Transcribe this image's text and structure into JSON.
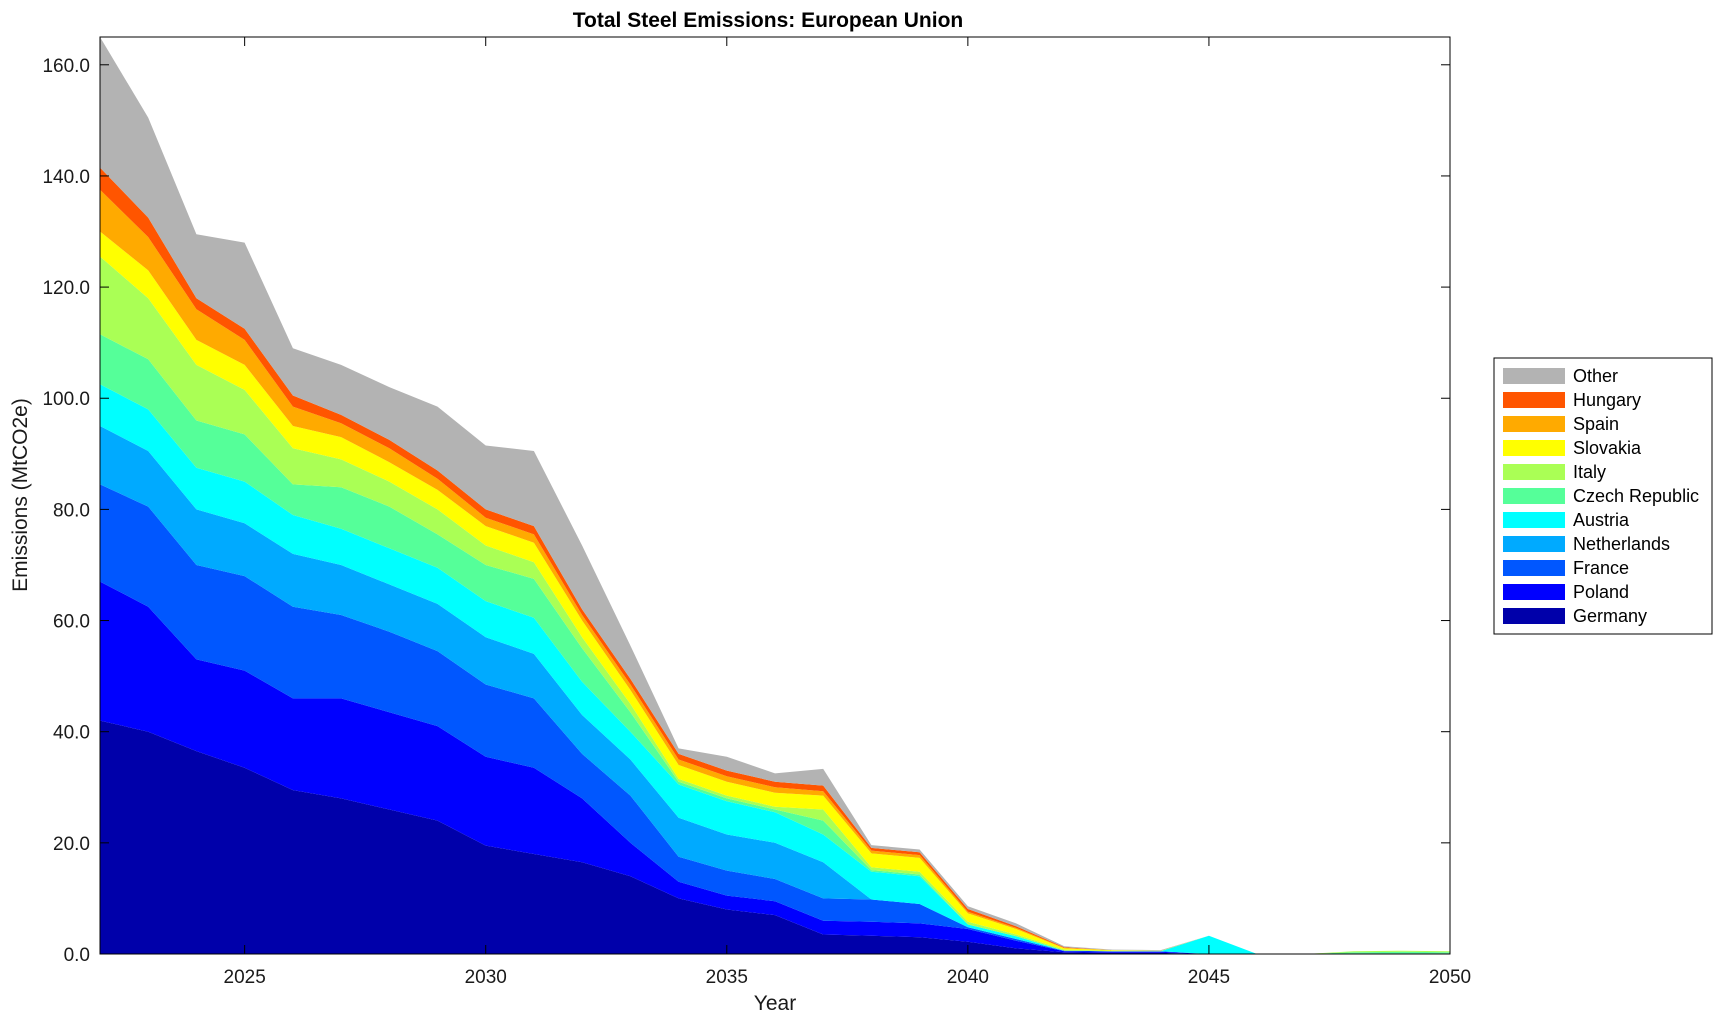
{
  "chart_data": {
    "type": "area",
    "stacked": true,
    "title": "Total Steel Emissions: European Union",
    "xlabel": "Year",
    "ylabel": "Emissions (MtCO2e)",
    "xlim": [
      2022,
      2050
    ],
    "ylim": [
      0,
      165
    ],
    "xticks": [
      2025,
      2030,
      2035,
      2040,
      2045,
      2050
    ],
    "yticks": [
      0,
      20,
      40,
      60,
      80,
      100,
      120,
      140,
      160
    ],
    "ytick_labels": [
      "0.0",
      "20.0",
      "40.0",
      "60.0",
      "80.0",
      "100.0",
      "120.0",
      "140.0",
      "160.0"
    ],
    "legend_position": "right",
    "x": [
      2022,
      2023,
      2024,
      2025,
      2026,
      2027,
      2028,
      2029,
      2030,
      2031,
      2032,
      2033,
      2034,
      2035,
      2036,
      2037,
      2038,
      2039,
      2040,
      2041,
      2042,
      2043,
      2044,
      2045,
      2046,
      2047,
      2048,
      2049,
      2050
    ],
    "series": [
      {
        "name": "Germany",
        "color": "#0000aa",
        "values": [
          42,
          40,
          36.5,
          33.5,
          29.5,
          28,
          26,
          24,
          19.5,
          18,
          16.5,
          14,
          10,
          8,
          7,
          3.5,
          3.3,
          3,
          2.2,
          1,
          0.3,
          0.2,
          0.2,
          0,
          0,
          0,
          0,
          0,
          0
        ]
      },
      {
        "name": "Poland",
        "color": "#0000ff",
        "values": [
          25,
          22.5,
          16.5,
          17.5,
          16.5,
          18,
          17.5,
          17,
          16,
          15.5,
          11.5,
          6,
          3,
          2.5,
          2.5,
          2.5,
          2.5,
          2.5,
          2.3,
          1.4,
          0.2,
          0.2,
          0.2,
          0,
          0,
          0,
          0,
          0,
          0
        ]
      },
      {
        "name": "France",
        "color": "#0057ff",
        "values": [
          17.5,
          18,
          17,
          17,
          16.5,
          15,
          14.5,
          13.5,
          13,
          12.5,
          8,
          8.5,
          4.5,
          4.5,
          4,
          4,
          4,
          3.5,
          0.3,
          0.3,
          0.1,
          0.1,
          0.1,
          0,
          0,
          0,
          0.1,
          0.1,
          0.1
        ]
      },
      {
        "name": "Netherlands",
        "color": "#00aaff",
        "values": [
          10.5,
          10,
          10,
          9.5,
          9.5,
          9,
          8.5,
          8.5,
          8.5,
          8,
          7,
          6.5,
          7,
          6.5,
          6.5,
          6.5,
          0,
          0,
          0,
          0,
          0,
          0,
          0,
          0,
          0,
          0,
          0,
          0,
          0
        ]
      },
      {
        "name": "Austria",
        "color": "#00ffff",
        "values": [
          7.5,
          7.5,
          7.5,
          7.5,
          7,
          6.5,
          6.5,
          6.5,
          6.5,
          6.5,
          6,
          5,
          6,
          6,
          5.5,
          5,
          5,
          5,
          0.5,
          0.5,
          0,
          0,
          0,
          3.3,
          0,
          0,
          0,
          0,
          0
        ]
      },
      {
        "name": "Czech Republic",
        "color": "#55ff99",
        "values": [
          9,
          9,
          8.5,
          8.5,
          5.5,
          7.5,
          7.5,
          6,
          6.5,
          7,
          6,
          3.5,
          0.5,
          0.5,
          0.5,
          2.5,
          0.3,
          0.3,
          0,
          0,
          0,
          0,
          0,
          0,
          0,
          0,
          0.2,
          0.3,
          0.2
        ]
      },
      {
        "name": "Italy",
        "color": "#aaff55",
        "values": [
          14,
          11,
          10,
          8,
          6.5,
          5,
          4.5,
          4.5,
          3.5,
          3,
          2,
          1.5,
          0.5,
          0.5,
          0.5,
          2,
          0.5,
          0.5,
          0.5,
          0.3,
          0.2,
          0.1,
          0.1,
          0,
          0,
          0,
          0.2,
          0.2,
          0.2
        ]
      },
      {
        "name": "Slovakia",
        "color": "#ffff00",
        "values": [
          4.5,
          5,
          4.5,
          4.5,
          4,
          4,
          3.5,
          3.5,
          3.5,
          3.5,
          3,
          2.5,
          2.5,
          2.5,
          2.5,
          2.5,
          2.5,
          2.5,
          1.5,
          1,
          0.2,
          0.1,
          0,
          0,
          0,
          0,
          0,
          0,
          0
        ]
      },
      {
        "name": "Spain",
        "color": "#ffaa00",
        "values": [
          7.5,
          6,
          5.5,
          4.5,
          3.5,
          2.5,
          2.5,
          2,
          1.5,
          1.5,
          1,
          1,
          1,
          1,
          1,
          0.8,
          0.5,
          0.5,
          0.3,
          0.2,
          0.1,
          0,
          0,
          0,
          0,
          0,
          0,
          0,
          0
        ]
      },
      {
        "name": "Hungary",
        "color": "#ff5500",
        "values": [
          4,
          3.5,
          2,
          2,
          2,
          1.5,
          1.5,
          1.5,
          1.5,
          1.5,
          1,
          1,
          1,
          1,
          1,
          1,
          0.5,
          0.5,
          0.5,
          0.3,
          0.1,
          0,
          0,
          0,
          0,
          0,
          0,
          0,
          0
        ]
      },
      {
        "name": "Other",
        "color": "#b3b3b3",
        "values": [
          23.5,
          18,
          11.5,
          15.5,
          8.5,
          9,
          9.5,
          11.5,
          11.5,
          13.5,
          11.5,
          6,
          1,
          2.5,
          1.5,
          3,
          0.5,
          0.5,
          0.5,
          0.5,
          0.2,
          0.1,
          0.1,
          0,
          0,
          0,
          0,
          0,
          0
        ]
      }
    ]
  }
}
